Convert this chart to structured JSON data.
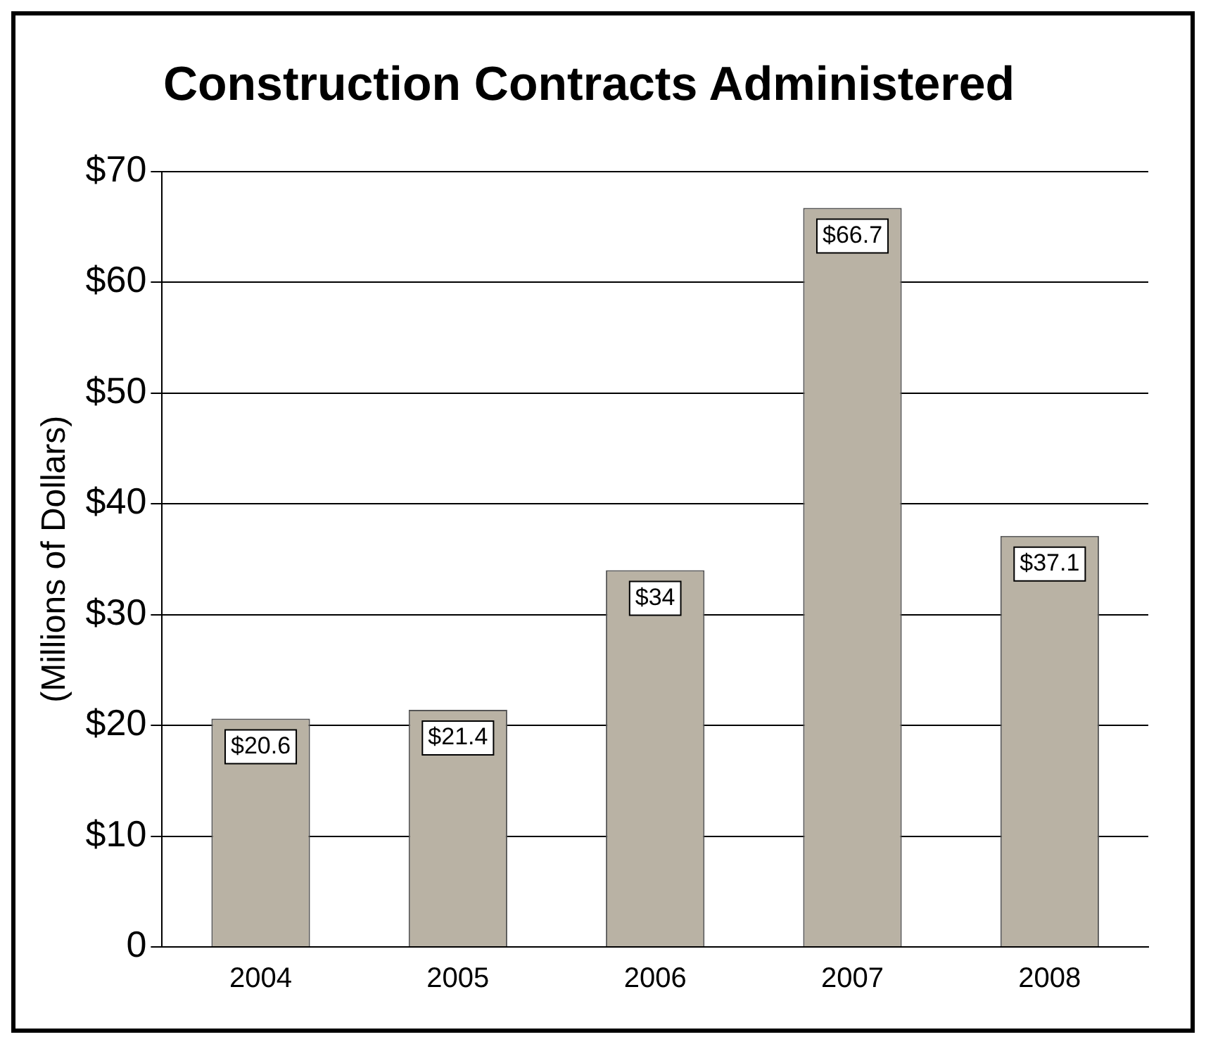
{
  "chart_data": {
    "type": "bar",
    "title": "Construction Contracts Administered",
    "ylabel": "(Millions of Dollars)",
    "categories": [
      "2004",
      "2005",
      "2006",
      "2007",
      "2008"
    ],
    "values": [
      20.6,
      21.4,
      34,
      66.7,
      37.1
    ],
    "value_labels": [
      "$20.6",
      "$21.4",
      "$34",
      "$66.7",
      "$37.1"
    ],
    "color": "#b9b2a4",
    "ylim": [
      0,
      70
    ],
    "yticks": [
      {
        "value": 0,
        "label": "0"
      },
      {
        "value": 10,
        "label": "$10"
      },
      {
        "value": 20,
        "label": "$20"
      },
      {
        "value": 30,
        "label": "$30"
      },
      {
        "value": 40,
        "label": "$40"
      },
      {
        "value": 50,
        "label": "$50"
      },
      {
        "value": 60,
        "label": "$60"
      },
      {
        "value": 70,
        "label": "$70"
      }
    ],
    "grid": "y",
    "legend": false
  }
}
